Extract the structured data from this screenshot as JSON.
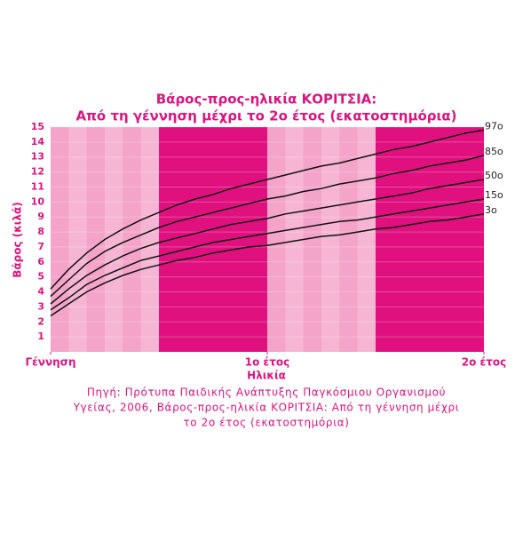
{
  "chart_data": {
    "type": "line",
    "title": [
      "Βάρος-προς-ηλικία ΚΟΡΙΤΣΙΑ:",
      "Από τη γέννηση μέχρι το 2ο έτος (εκατοστημόρια)"
    ],
    "x_label": "Ηλικία",
    "y_label": "Βάρος (κιλά)",
    "x": [
      0,
      1,
      2,
      3,
      4,
      5,
      6,
      7,
      8,
      9,
      10,
      11,
      12,
      13,
      14,
      15,
      16,
      17,
      18,
      19,
      20,
      21,
      22,
      23,
      24
    ],
    "xlim": [
      0,
      24
    ],
    "xticks": [
      {
        "value": 0,
        "label": "Γέννηση"
      },
      {
        "value": 12,
        "label": "1ο έτος"
      },
      {
        "value": 24,
        "label": "2ο έτος"
      }
    ],
    "ylim": [
      0,
      15
    ],
    "yticks": [
      1,
      2,
      3,
      4,
      5,
      6,
      7,
      8,
      9,
      10,
      11,
      12,
      13,
      14,
      15
    ],
    "band_colors": [
      "#f4a3c9",
      "#e0117f"
    ],
    "series": [
      {
        "name": "97ο",
        "color": "#111111",
        "values": [
          4.2,
          5.5,
          6.6,
          7.5,
          8.2,
          8.8,
          9.3,
          9.8,
          10.2,
          10.5,
          10.9,
          11.2,
          11.5,
          11.8,
          12.1,
          12.4,
          12.6,
          12.9,
          13.2,
          13.5,
          13.7,
          14.0,
          14.3,
          14.6,
          14.8
        ]
      },
      {
        "name": "85ο",
        "color": "#111111",
        "values": [
          3.7,
          4.8,
          5.9,
          6.7,
          7.3,
          7.8,
          8.3,
          8.7,
          9.0,
          9.3,
          9.6,
          9.9,
          10.2,
          10.4,
          10.7,
          10.9,
          11.2,
          11.4,
          11.6,
          11.9,
          12.1,
          12.4,
          12.6,
          12.8,
          13.1
        ]
      },
      {
        "name": "50ο",
        "color": "#111111",
        "values": [
          3.2,
          4.2,
          5.1,
          5.8,
          6.4,
          6.9,
          7.3,
          7.6,
          7.9,
          8.2,
          8.5,
          8.7,
          8.9,
          9.2,
          9.4,
          9.6,
          9.8,
          10.0,
          10.2,
          10.4,
          10.6,
          10.9,
          11.1,
          11.3,
          11.5
        ]
      },
      {
        "name": "15ο",
        "color": "#111111",
        "values": [
          2.8,
          3.6,
          4.5,
          5.1,
          5.6,
          6.1,
          6.4,
          6.7,
          7.0,
          7.3,
          7.5,
          7.7,
          7.9,
          8.1,
          8.3,
          8.5,
          8.7,
          8.8,
          9.0,
          9.2,
          9.4,
          9.6,
          9.8,
          10.0,
          10.2
        ]
      },
      {
        "name": "3ο",
        "color": "#111111",
        "values": [
          2.4,
          3.2,
          4.0,
          4.6,
          5.1,
          5.5,
          5.8,
          6.1,
          6.3,
          6.6,
          6.8,
          7.0,
          7.1,
          7.3,
          7.5,
          7.7,
          7.8,
          8.0,
          8.2,
          8.3,
          8.5,
          8.7,
          8.8,
          9.0,
          9.2
        ]
      }
    ],
    "source": [
      "Πηγή: Πρότυπα Παιδικής Ανάπτυξης Παγκόσμιου Οργανισμού",
      "Υγείας, 2006, Βάρος-προς-ηλικία ΚΟΡΙΤΣΙΑ: Από τη γέννηση μέχρι",
      "το 2ο έτος (εκατοστημόρια)"
    ]
  }
}
